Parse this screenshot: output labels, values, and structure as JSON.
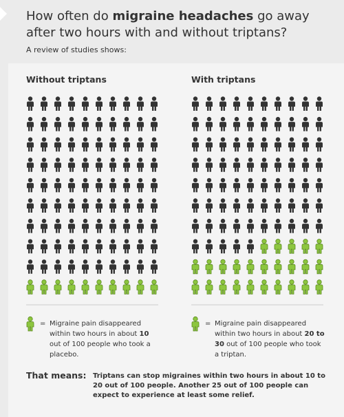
{
  "header": {
    "title": [
      "How often do ",
      "migraine headaches",
      " go away after two hours with and without triptans?"
    ],
    "subtitle": "A review of studies shows:"
  },
  "chart_data": [
    {
      "type": "pictogram",
      "title": "Without triptans",
      "total": 100,
      "highlighted": 10,
      "color": "#8dc63f",
      "base_color": "#333333",
      "legend": {
        "symbol": "=",
        "text": [
          "Migraine pain disappeared within two hours in about ",
          "10",
          " out of 100 people who took a placebo."
        ]
      }
    },
    {
      "type": "pictogram",
      "title": "With triptans",
      "total": 100,
      "highlighted": 25,
      "color": "#8dc63f",
      "base_color": "#333333",
      "legend": {
        "symbol": "=",
        "text": [
          "Migraine pain disappeared within two hours in about ",
          "20 to 30",
          " out of 100 people who took a triptan."
        ]
      }
    }
  ],
  "footer": {
    "label": "That means:",
    "text": "Triptans can stop migraines within two hours in about 10 to 20 out of 100 people. Another 25 out of 100 people can expect to experience at least some relief."
  }
}
